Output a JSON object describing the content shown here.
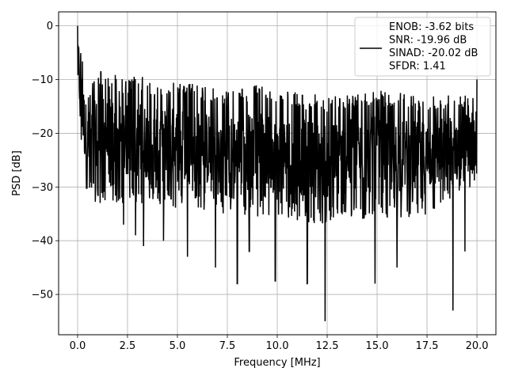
{
  "chart_data": {
    "type": "line",
    "xlabel": "Frequency [MHz]",
    "ylabel": "PSD [dB]",
    "xlim": [
      -0.95,
      20.95
    ],
    "ylim": [
      -57.5,
      2.6
    ],
    "xticks": [
      0.0,
      2.5,
      5.0,
      7.5,
      10.0,
      12.5,
      15.0,
      17.5,
      20.0
    ],
    "xtick_labels": [
      "0.0",
      "2.5",
      "5.0",
      "7.5",
      "10.0",
      "12.5",
      "15.0",
      "17.5",
      "20.0"
    ],
    "yticks": [
      0,
      -10,
      -20,
      -30,
      -40,
      -50
    ],
    "ytick_labels": [
      "0",
      "−10",
      "−20",
      "−30",
      "−40",
      "−50"
    ],
    "grid": true,
    "legend_position": "top-right",
    "series": [
      {
        "name": "ENOB: -3.62 bits\nSNR: -19.96 dB\nSINAD: -20.02 dB\nSFDR: 1.41",
        "color": "#000000",
        "x_range": [
          0.0,
          20.0
        ],
        "peak": {
          "x": 0.0,
          "y": 0.0
        },
        "envelope_upper": [
          [
            0.0,
            0.0
          ],
          [
            0.3,
            -7
          ],
          [
            0.5,
            -12
          ],
          [
            1.0,
            -8
          ],
          [
            2.0,
            -9
          ],
          [
            2.5,
            -10
          ],
          [
            3.0,
            -9
          ],
          [
            4.0,
            -11
          ],
          [
            5.0,
            -10
          ],
          [
            6.0,
            -11
          ],
          [
            7.5,
            -12
          ],
          [
            9.0,
            -11
          ],
          [
            10.0,
            -12
          ],
          [
            12.5,
            -13
          ],
          [
            15.0,
            -12
          ],
          [
            17.5,
            -13
          ],
          [
            20.0,
            -12
          ]
        ],
        "envelope_lower": [
          [
            0.0,
            -14
          ],
          [
            0.3,
            -28
          ],
          [
            0.5,
            -32
          ],
          [
            1.0,
            -33
          ],
          [
            2.5,
            -33
          ],
          [
            5.0,
            -34
          ],
          [
            7.5,
            -35
          ],
          [
            10.0,
            -36
          ],
          [
            12.5,
            -37
          ],
          [
            15.0,
            -36
          ],
          [
            17.5,
            -36
          ],
          [
            20.0,
            -30
          ]
        ],
        "notable_dips": [
          [
            2.3,
            -37
          ],
          [
            2.9,
            -39
          ],
          [
            3.3,
            -41
          ],
          [
            4.3,
            -40
          ],
          [
            5.5,
            -43
          ],
          [
            6.9,
            -45
          ],
          [
            8.0,
            -48
          ],
          [
            8.6,
            -42
          ],
          [
            9.9,
            -47.5
          ],
          [
            11.5,
            -48
          ],
          [
            12.4,
            -55
          ],
          [
            14.9,
            -48
          ],
          [
            16.0,
            -45
          ],
          [
            18.8,
            -53
          ],
          [
            19.4,
            -42
          ]
        ],
        "final_x_value": 20.0,
        "final_y_value": -10
      }
    ]
  }
}
